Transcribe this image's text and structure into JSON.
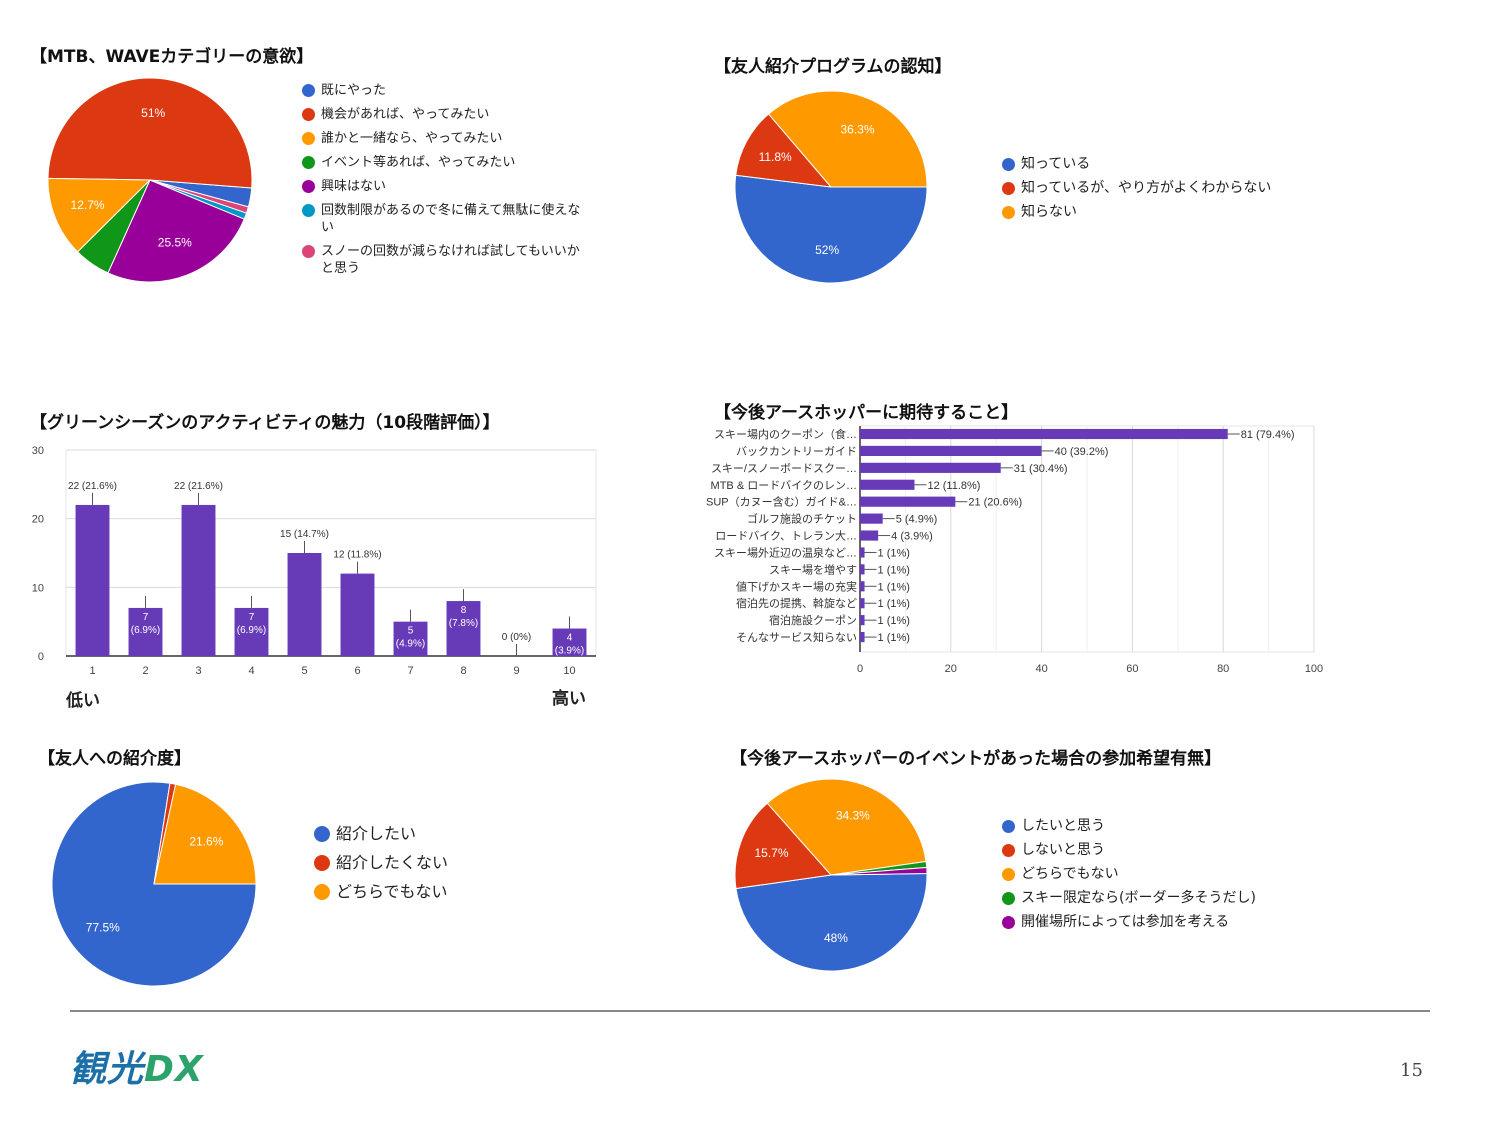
{
  "colors": {
    "blue": "#3366cc",
    "red": "#dc3912",
    "orange": "#ff9900",
    "green": "#109618",
    "purple": "#990099",
    "cyan": "#0099c6",
    "pink": "#dd4477",
    "bar": "#673ab7"
  },
  "chart_data": [
    {
      "id": "mtb",
      "type": "pie",
      "title": "【MTB、WAVEカテゴリーの意欲】",
      "labels": [
        "既にやった",
        "機会があれば、やってみたい",
        "誰かと一緒なら、やってみたい",
        "イベント等あれば、やってみたい",
        "興味はない",
        "回数制限があるので冬に備えて無駄に使えない",
        "スノーの回数が減らなければ試してもいいかと思う"
      ],
      "values": [
        3.0,
        51.0,
        12.7,
        5.8,
        25.5,
        1.0,
        1.0
      ],
      "value_labels": [
        "",
        "51%",
        "12.7%",
        "",
        "25.5%",
        "",
        ""
      ],
      "colors": [
        "#3366cc",
        "#dc3912",
        "#ff9900",
        "#109618",
        "#990099",
        "#0099c6",
        "#dd4477"
      ]
    },
    {
      "id": "referral",
      "type": "pie",
      "title": "【友人紹介プログラムの認知】",
      "labels": [
        "知っている",
        "知っているが、やり方がよくわからない",
        "知らない"
      ],
      "values": [
        52.0,
        11.8,
        36.3
      ],
      "value_labels": [
        "52%",
        "11.8%",
        "36.3%"
      ],
      "colors": [
        "#3366cc",
        "#dc3912",
        "#ff9900"
      ]
    },
    {
      "id": "green",
      "type": "bar",
      "title": "【グリーンシーズンのアクティビティの魅力（10段階評価）】",
      "categories": [
        "1",
        "2",
        "3",
        "4",
        "5",
        "6",
        "7",
        "8",
        "9",
        "10"
      ],
      "values": [
        22,
        7,
        22,
        7,
        15,
        12,
        5,
        8,
        0,
        4
      ],
      "value_labels": [
        "22 (21.6%)",
        "7 (6.9%)",
        "22 (21.6%)",
        "7 (6.9%)",
        "15 (14.7%)",
        "12 (11.8%)",
        "5 (4.9%)",
        "8 (7.8%)",
        "0 (0%)",
        "4 (3.9%)"
      ],
      "yticks": [
        0,
        10,
        20,
        30
      ],
      "ylim": [
        0,
        30
      ],
      "low_label": "低い",
      "high_label": "高い"
    },
    {
      "id": "expect",
      "type": "bar",
      "orientation": "horizontal",
      "title": "【今後アースホッパーに期待すること】",
      "categories": [
        "スキー場内のクーポン（食…",
        "バックカントリーガイド",
        "スキー/スノーボードスクー…",
        "MTB & ロードバイクのレン…",
        "SUP（カヌー含む）ガイド&…",
        "ゴルフ施設のチケット",
        "ロードバイク、トレラン大…",
        "スキー場外近辺の温泉など…",
        "スキー場を増やす",
        "値下げかスキー場の充実",
        "宿泊先の提携、斡旋など",
        "宿泊施設クーポン",
        "そんなサービス知らない"
      ],
      "values": [
        81,
        40,
        31,
        12,
        21,
        5,
        4,
        1,
        1,
        1,
        1,
        1,
        1
      ],
      "value_labels": [
        "81 (79.4%)",
        "40 (39.2%)",
        "31 (30.4%)",
        "12 (11.8%)",
        "21 (20.6%)",
        "5 (4.9%)",
        "4 (3.9%)",
        "1 (1%)",
        "1 (1%)",
        "1 (1%)",
        "1 (1%)",
        "1 (1%)",
        "1 (1%)"
      ],
      "xticks": [
        0,
        20,
        40,
        60,
        80,
        100
      ],
      "xlim": [
        0,
        100
      ]
    },
    {
      "id": "friend",
      "type": "pie",
      "title": "【友人への紹介度】",
      "labels": [
        "紹介したい",
        "紹介したくない",
        "どちらでもない"
      ],
      "values": [
        77.5,
        0.9,
        21.6
      ],
      "value_labels": [
        "77.5%",
        "",
        "21.6%"
      ],
      "colors": [
        "#3366cc",
        "#dc3912",
        "#ff9900"
      ]
    },
    {
      "id": "event",
      "type": "pie",
      "title": "【今後アースホッパーのイベントがあった場合の参加希望有無】",
      "labels": [
        "したいと思う",
        "しないと思う",
        "どちらでもない",
        "スキー限定なら(ボーダー多そうだし)",
        "開催場所によっては参加を考える"
      ],
      "values": [
        48.0,
        15.7,
        34.3,
        1.0,
        1.0
      ],
      "value_labels": [
        "48%",
        "15.7%",
        "34.3%",
        "",
        ""
      ],
      "colors": [
        "#3366cc",
        "#dc3912",
        "#ff9900",
        "#109618",
        "#990099"
      ]
    }
  ],
  "footer": {
    "logo_main": "観光",
    "logo_dx": "DX",
    "page": "15"
  }
}
